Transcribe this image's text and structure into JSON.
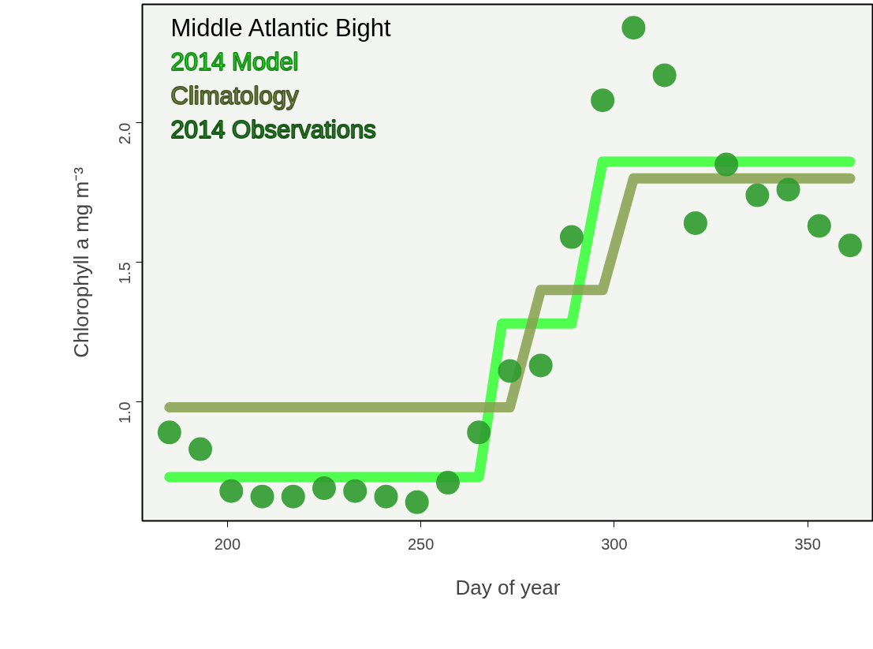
{
  "chart_data": {
    "type": "scatter",
    "title": "Middle Atlantic Bight",
    "xlabel": "Day of year",
    "ylabel": "Chlorophyll a mg m⁻³",
    "xlim": [
      178,
      367
    ],
    "xticks": [
      200,
      250,
      300,
      350
    ],
    "ylim": [
      0.573,
      2.424
    ],
    "yticks": [
      {
        "value": 1,
        "label": "1.0"
      },
      1.5,
      {
        "value": 2,
        "label": "2.0"
      }
    ],
    "grid": false,
    "legend": "top left",
    "series": [
      {
        "name": "2014 Model",
        "type": "line",
        "color": "#33ff33",
        "x": [
          185,
          265,
          271,
          289,
          297,
          361
        ],
        "values": [
          0.73,
          0.73,
          1.28,
          1.28,
          1.86,
          1.86
        ]
      },
      {
        "name": "Climatology",
        "type": "line",
        "color": "#86a04c",
        "x": [
          185,
          273,
          281,
          297,
          305,
          361
        ],
        "values": [
          0.98,
          0.98,
          1.4,
          1.4,
          1.8,
          1.8
        ]
      },
      {
        "name": "2014 Observations",
        "marker": "circle",
        "color": "#2e9b2e",
        "x": [
          185,
          193,
          201,
          209,
          217,
          225,
          233,
          241,
          249,
          257,
          265,
          273,
          281,
          289,
          297,
          305,
          313,
          321,
          329,
          337,
          345,
          353,
          361
        ],
        "values": [
          0.89,
          0.83,
          0.68,
          0.66,
          0.66,
          0.69,
          0.68,
          0.66,
          0.64,
          0.71,
          0.89,
          1.11,
          1.13,
          1.59,
          2.08,
          2.34,
          2.17,
          1.64,
          1.85,
          1.74,
          1.76,
          1.63,
          1.56
        ]
      }
    ]
  }
}
